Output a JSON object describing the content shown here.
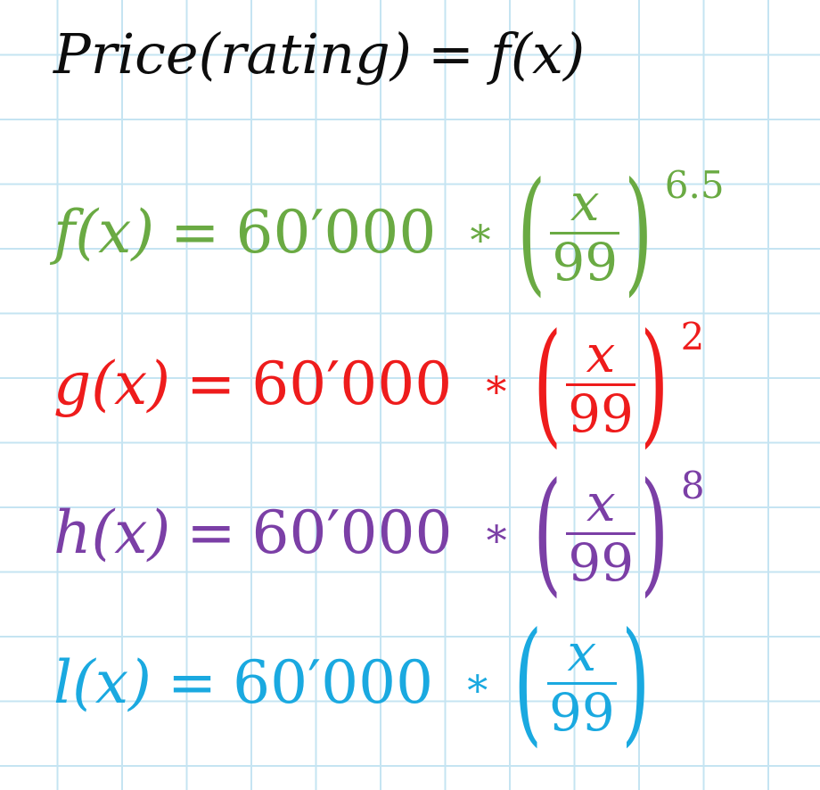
{
  "title": {
    "lhs": "Price(rating)",
    "eq": "=",
    "rhs": "f(x)"
  },
  "equations": [
    {
      "name": "f(x)",
      "eq": "=",
      "coef": "60′000",
      "op": "∗",
      "numer": "x",
      "denom": "99",
      "exp": "6.5",
      "color": "#6aaa43"
    },
    {
      "name": "g(x)",
      "eq": "=",
      "coef": "60′000",
      "op": "∗",
      "numer": "x",
      "denom": "99",
      "exp": "2",
      "color": "#ee1c1c"
    },
    {
      "name": "h(x)",
      "eq": "=",
      "coef": "60′000",
      "op": "∗",
      "numer": "x",
      "denom": "99",
      "exp": "8",
      "color": "#7b3fa6"
    },
    {
      "name": "l(x)",
      "eq": "=",
      "coef": "60′000",
      "op": "∗",
      "numer": "x",
      "denom": "99",
      "exp": "",
      "color": "#1aa9e0"
    }
  ]
}
